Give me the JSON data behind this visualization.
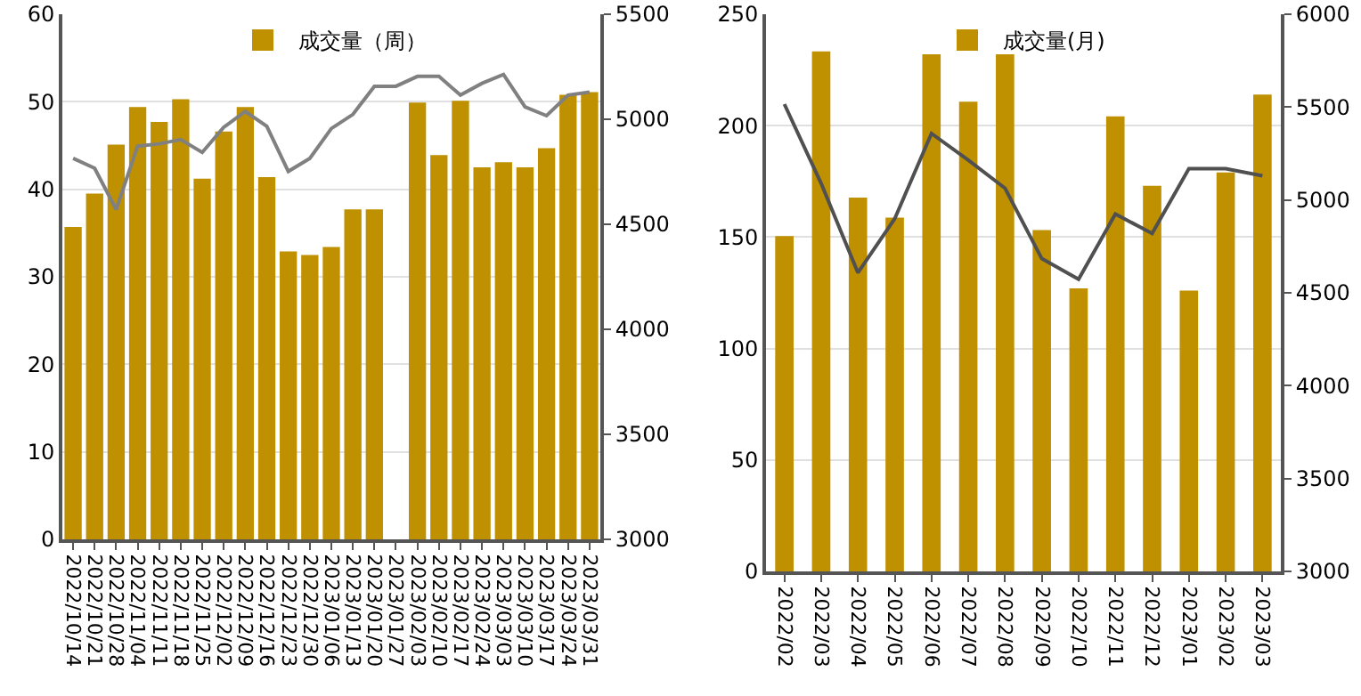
{
  "chart_data": [
    {
      "type": "bar",
      "categories": [
        "2022/10/14",
        "2022/10/21",
        "2022/10/28",
        "2022/11/04",
        "2022/11/11",
        "2022/11/18",
        "2022/11/25",
        "2022/12/02",
        "2022/12/09",
        "2022/12/16",
        "2022/12/23",
        "2022/12/30",
        "2023/01/06",
        "2023/01/13",
        "2023/01/20",
        "2023/01/27",
        "2023/02/03",
        "2023/02/10",
        "2023/02/17",
        "2023/02/24",
        "2023/03/03",
        "2023/03/10",
        "2023/03/17",
        "2023/03/24",
        "2023/03/31"
      ],
      "series": [
        {
          "name": "成交量（周）",
          "color": "#bf9000",
          "values": [
            35.7,
            39.5,
            45.1,
            49.4,
            47.7,
            50.3,
            41.2,
            46.6,
            49.4,
            41.4,
            32.9,
            32.5,
            33.4,
            37.7,
            37.7,
            null,
            49.9,
            43.9,
            50.1,
            42.5,
            43.1,
            42.5,
            44.7,
            50.8,
            51.1
          ]
        },
        {
          "type": "line",
          "axis": "y2",
          "color": "#808080",
          "values": [
            4814,
            4767,
            4571,
            4872,
            4883,
            4903,
            4842,
            4962,
            5037,
            4967,
            4752,
            4814,
            4956,
            5023,
            5157,
            5157,
            5204,
            5204,
            5115,
            5171,
            5213,
            5059,
            5017,
            5115,
            5129
          ]
        }
      ],
      "ylim": [
        0,
        60
      ],
      "yticks": [
        0,
        10,
        20,
        30,
        40,
        50,
        60
      ],
      "y2lim": [
        3000,
        5500
      ],
      "y2ticks": [
        3000,
        3500,
        4000,
        4500,
        5000,
        5500
      ],
      "grid": "y",
      "legend": "top",
      "marker": "none",
      "line_style": "solid"
    },
    {
      "type": "bar",
      "categories": [
        "2022/02",
        "2022/03",
        "2022/04",
        "2022/05",
        "2022/06",
        "2022/07",
        "2022/08",
        "2022/09",
        "2022/10",
        "2022/11",
        "2022/12",
        "2023/01",
        "2023/02",
        "2023/03"
      ],
      "series": [
        {
          "name": "成交量(月)",
          "color": "#bf9000",
          "values": [
            150.5,
            233.3,
            167.7,
            158.7,
            232,
            210.8,
            232,
            153.2,
            127,
            204.2,
            173,
            126,
            179,
            214
          ]
        },
        {
          "type": "line",
          "axis": "y2",
          "color": "#505050",
          "values": [
            5516,
            5089,
            4608,
            4899,
            5358,
            5215,
            5063,
            4684,
            4573,
            4924,
            4820,
            5168,
            5168,
            5130
          ]
        }
      ],
      "ylim": [
        0,
        250
      ],
      "yticks": [
        0,
        50,
        100,
        150,
        200,
        250
      ],
      "y2lim": [
        3000,
        6000
      ],
      "y2ticks": [
        3000,
        3500,
        4000,
        4500,
        5000,
        5500,
        6000
      ],
      "grid": "y",
      "legend": "top",
      "marker": "none",
      "line_style": "solid"
    }
  ]
}
